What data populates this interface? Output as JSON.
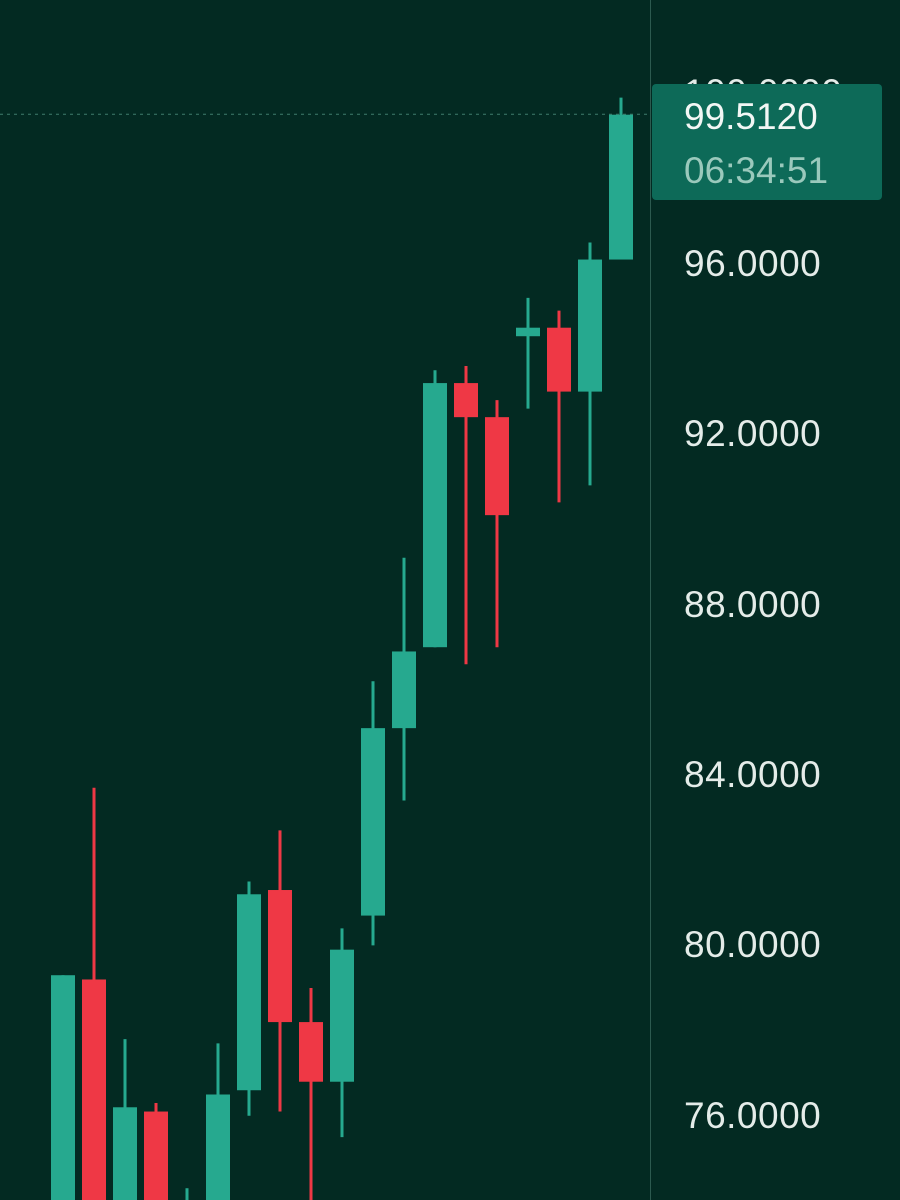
{
  "chart_data": {
    "type": "candlestick",
    "y_ticks": [
      "100.0000",
      "96.0000",
      "92.0000",
      "88.0000",
      "84.0000",
      "80.0000",
      "76.0000"
    ],
    "y_tick_values": [
      100,
      96,
      92,
      88,
      84,
      80,
      76
    ],
    "ylim": [
      73.8,
      102.15
    ],
    "grid": false,
    "colors": {
      "up": "#26a98f",
      "down": "#ef3845",
      "background": "#032a22",
      "last_price_box": "#0d6a58"
    },
    "last_price": {
      "value": 99.512,
      "label": "99.5120",
      "time_remaining": "06:34:51"
    },
    "candles": [
      {
        "open": 74.0,
        "close": 79.3,
        "high": 79.3,
        "low": 73.8
      },
      {
        "open": 79.2,
        "close": 73.8,
        "high": 83.7,
        "low": 73.8
      },
      {
        "open": 73.8,
        "close": 76.2,
        "high": 77.8,
        "low": 73.8
      },
      {
        "open": 76.1,
        "close": 73.8,
        "high": 76.3,
        "low": 73.8
      },
      {
        "open": 73.8,
        "close": 73.9,
        "high": 74.3,
        "low": 73.8
      },
      {
        "open": 73.9,
        "close": 76.5,
        "high": 77.7,
        "low": 73.8
      },
      {
        "open": 76.6,
        "close": 81.2,
        "high": 81.5,
        "low": 76.0
      },
      {
        "open": 81.3,
        "close": 78.2,
        "high": 82.7,
        "low": 76.1
      },
      {
        "open": 78.2,
        "close": 76.8,
        "high": 79.0,
        "low": 73.8
      },
      {
        "open": 76.8,
        "close": 79.9,
        "high": 80.4,
        "low": 75.5
      },
      {
        "open": 80.7,
        "close": 85.1,
        "high": 86.2,
        "low": 80.0
      },
      {
        "open": 85.1,
        "close": 86.9,
        "high": 89.1,
        "low": 83.4
      },
      {
        "open": 87.0,
        "close": 93.2,
        "high": 93.5,
        "low": 87.0
      },
      {
        "open": 93.2,
        "close": 92.4,
        "high": 93.6,
        "low": 86.6
      },
      {
        "open": 92.4,
        "close": 90.1,
        "high": 92.8,
        "low": 87.0
      },
      {
        "open": 94.3,
        "close": 94.5,
        "high": 95.2,
        "low": 92.6
      },
      {
        "open": 94.5,
        "close": 93.0,
        "high": 94.9,
        "low": 90.4
      },
      {
        "open": 93.0,
        "close": 96.1,
        "high": 96.5,
        "low": 90.8
      },
      {
        "open": 96.1,
        "close": 99.5,
        "high": 99.9,
        "low": 96.1
      }
    ]
  }
}
